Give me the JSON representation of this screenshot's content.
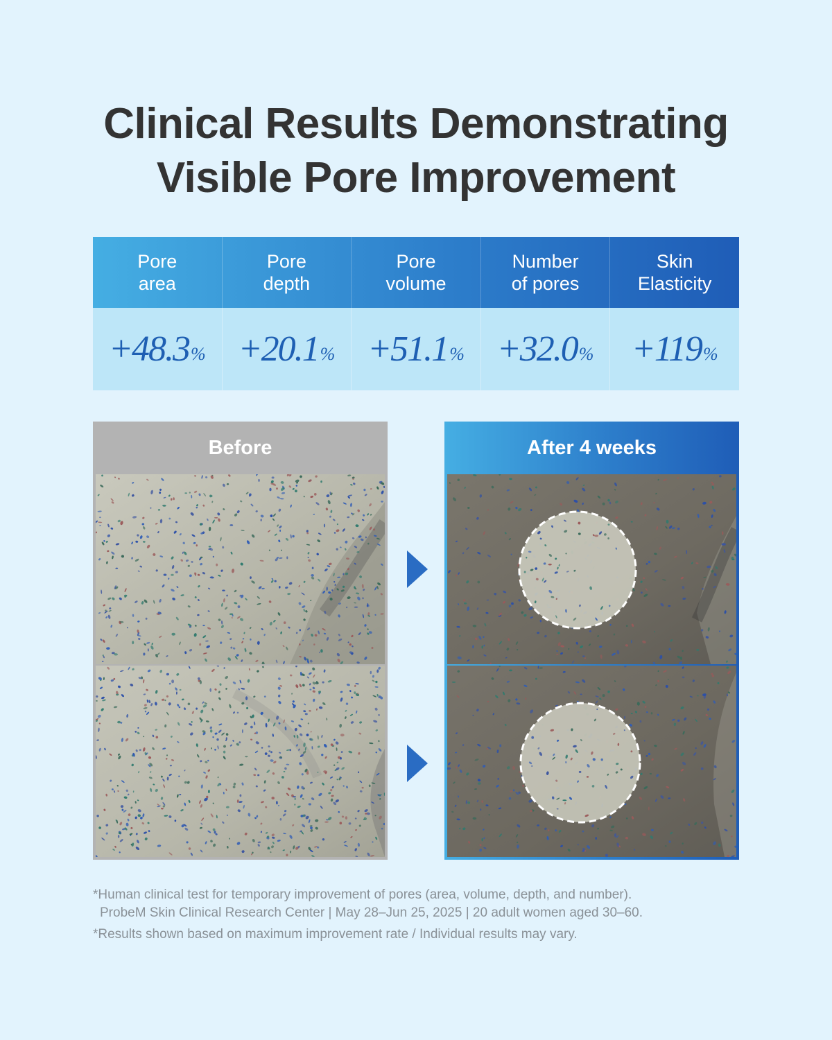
{
  "title": {
    "line1": "Clinical Results Demonstrating",
    "line2": "Visible Pore Improvement"
  },
  "stats": [
    {
      "label_line1": "Pore",
      "label_line2": "area",
      "value": "+48.3",
      "unit": "%"
    },
    {
      "label_line1": "Pore",
      "label_line2": "depth",
      "value": "+20.1",
      "unit": "%"
    },
    {
      "label_line1": "Pore",
      "label_line2": "volume",
      "value": "+51.1",
      "unit": "%"
    },
    {
      "label_line1": "Number",
      "label_line2": "of pores",
      "value": "+32.0",
      "unit": "%"
    },
    {
      "label_line1": "Skin",
      "label_line2": "Elasticity",
      "value": "+119",
      "unit": "%"
    }
  ],
  "panels": {
    "before_label": "Before",
    "after_label": "After 4 weeks"
  },
  "footnotes": {
    "line1": "*Human clinical test for temporary improvement of pores (area, volume, depth, and number).",
    "line2": "ProbeM Skin Clinical Research Center | May 28–Jun 25, 2025 | 20 adult women aged 30–60.",
    "line3": "*Results shown based on maximum improvement rate / Individual results may vary."
  },
  "colors": {
    "background": "#e2f3fd",
    "accent_blue": "#1e5fb3",
    "gradient_start": "#45aee3",
    "gradient_end": "#1f5db7",
    "before_gray": "#b3b3b3"
  }
}
